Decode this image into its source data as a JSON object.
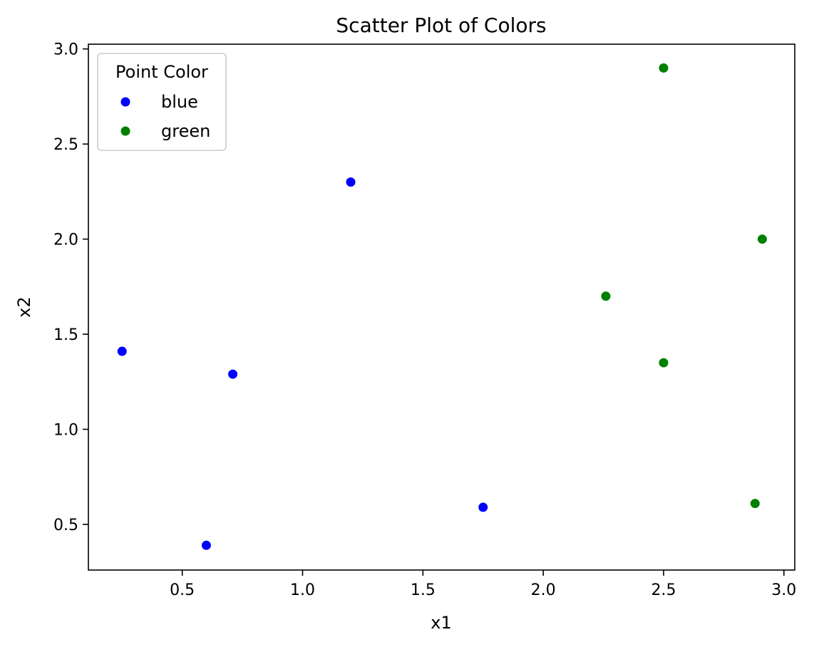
{
  "chart_data": {
    "type": "scatter",
    "title": "Scatter Plot of Colors",
    "xlabel": "x1",
    "ylabel": "x2",
    "xlim": [
      0.11,
      3.045
    ],
    "ylim": [
      0.26,
      3.025
    ],
    "xticks": [
      0.5,
      1.0,
      1.5,
      2.0,
      2.5,
      3.0
    ],
    "xtick_labels": [
      "0.5",
      "1.0",
      "1.5",
      "2.0",
      "2.5",
      "3.0"
    ],
    "yticks": [
      0.5,
      1.0,
      1.5,
      2.0,
      2.5,
      3.0
    ],
    "ytick_labels": [
      "0.5",
      "1.0",
      "1.5",
      "2.0",
      "2.5",
      "3.0"
    ],
    "grid": false,
    "legend": {
      "title": "Point Color",
      "placement": "top-left"
    },
    "series": [
      {
        "name": "blue",
        "color": "#0000ff",
        "points": [
          {
            "x": 0.25,
            "y": 1.41
          },
          {
            "x": 0.6,
            "y": 0.39
          },
          {
            "x": 0.71,
            "y": 1.29
          },
          {
            "x": 1.2,
            "y": 2.3
          },
          {
            "x": 1.75,
            "y": 0.59
          }
        ]
      },
      {
        "name": "green",
        "color": "#008000",
        "points": [
          {
            "x": 2.26,
            "y": 1.7
          },
          {
            "x": 2.5,
            "y": 2.9
          },
          {
            "x": 2.5,
            "y": 1.35
          },
          {
            "x": 2.88,
            "y": 0.61
          },
          {
            "x": 2.91,
            "y": 2.0
          }
        ]
      }
    ]
  }
}
